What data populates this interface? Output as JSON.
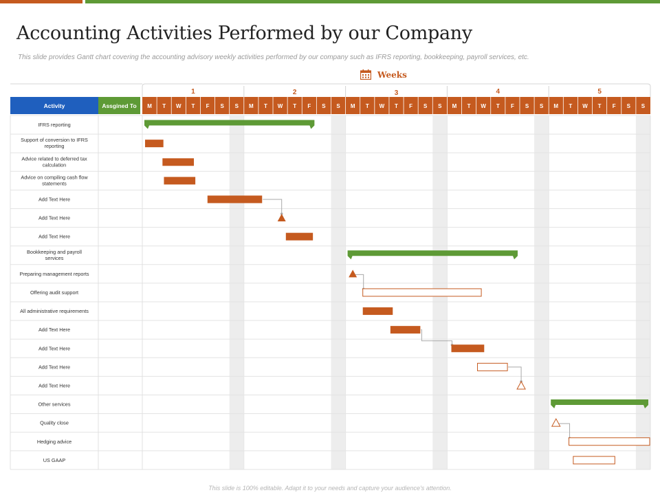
{
  "title": "Accounting Activities Performed by our Company",
  "subtitle": "This slide provides Gantt chart covering the accounting advisory weekly activities performed by our company such as IFRS reporting, bookkeeping, payroll services, etc.",
  "weeks_label": "Weeks",
  "footer": "This slide is 100% editable. Adapt it to your needs and capture your audience's attention.",
  "colors": {
    "accent_orange": "#C55A1F",
    "accent_green": "#5E9A36",
    "header_blue": "#1F5FBE",
    "weekend_shade": "#EDEDED"
  },
  "icons": {
    "weeks": "calendar-icon"
  },
  "chart_data": {
    "type": "gantt",
    "header": {
      "activity": "Activity",
      "assigned": "Assgined To"
    },
    "weeks": [
      "1",
      "2",
      "3",
      "4",
      "5"
    ],
    "days": [
      "M",
      "T",
      "W",
      "T",
      "F",
      "S",
      "S"
    ],
    "total_days": 35,
    "activities": [
      "IFRS reporting",
      [
        "Support of conversion to IFRS",
        "reporting"
      ],
      [
        "Advice related to deferred tax",
        "calculation"
      ],
      [
        "Advice on compiling cash flow",
        "statements"
      ],
      "Add Text Here",
      "Add Text Here",
      "Add Text Here",
      [
        "Bookkeeping  and payroll",
        "services"
      ],
      "Preparing management  reports",
      "Offering audit support",
      "All administrative requirements",
      "Add Text Here",
      "Add Text Here",
      "Add Text Here",
      "Add Text Here",
      "Other services",
      "Quality close",
      "Hedging advice",
      "US GAAP"
    ],
    "items": [
      {
        "type": "summary",
        "row": 0,
        "start": 0,
        "end": 12
      },
      {
        "type": "task",
        "row": 1,
        "start": 0,
        "end": 1.5
      },
      {
        "type": "task",
        "row": 2,
        "start": 1.2,
        "end": 3.6
      },
      {
        "type": "task",
        "row": 3,
        "start": 1.3,
        "end": 3.7
      },
      {
        "type": "task",
        "row": 4,
        "start": 4.3,
        "end": 8.3
      },
      {
        "type": "milestone",
        "row": 5,
        "at": 9.6,
        "filled": true
      },
      {
        "type": "task",
        "row": 6,
        "start": 9.7,
        "end": 11.8
      },
      {
        "type": "summary",
        "row": 7,
        "start": 14,
        "end": 26
      },
      {
        "type": "milestone",
        "row": 8,
        "at": 14.5,
        "filled": true
      },
      {
        "type": "task",
        "row": 9,
        "start": 15,
        "end": 23.4,
        "hollow": true
      },
      {
        "type": "task",
        "row": 10,
        "start": 15,
        "end": 17.3
      },
      {
        "type": "task",
        "row": 11,
        "start": 16.9,
        "end": 19.2
      },
      {
        "type": "task",
        "row": 12,
        "start": 21.1,
        "end": 23.6
      },
      {
        "type": "task",
        "row": 13,
        "start": 22.9,
        "end": 25.2,
        "hollow": true
      },
      {
        "type": "milestone",
        "row": 14,
        "at": 26.1,
        "filled": false
      },
      {
        "type": "summary",
        "row": 15,
        "start": 28,
        "end": 35
      },
      {
        "type": "milestone",
        "row": 16,
        "at": 28.5,
        "filled": false
      },
      {
        "type": "task",
        "row": 17,
        "start": 29.2,
        "end": 35,
        "hollow": true
      },
      {
        "type": "task",
        "row": 18,
        "start": 29.5,
        "end": 32.6,
        "hollow": true
      }
    ],
    "links": [
      {
        "from_row": 4,
        "to_row": 5
      },
      {
        "from_row": 8,
        "to_row": 9
      },
      {
        "from_row": 11,
        "to_row": 12
      },
      {
        "from_row": 13,
        "to_row": 14
      },
      {
        "from_row": 16,
        "to_row": 17
      }
    ]
  }
}
